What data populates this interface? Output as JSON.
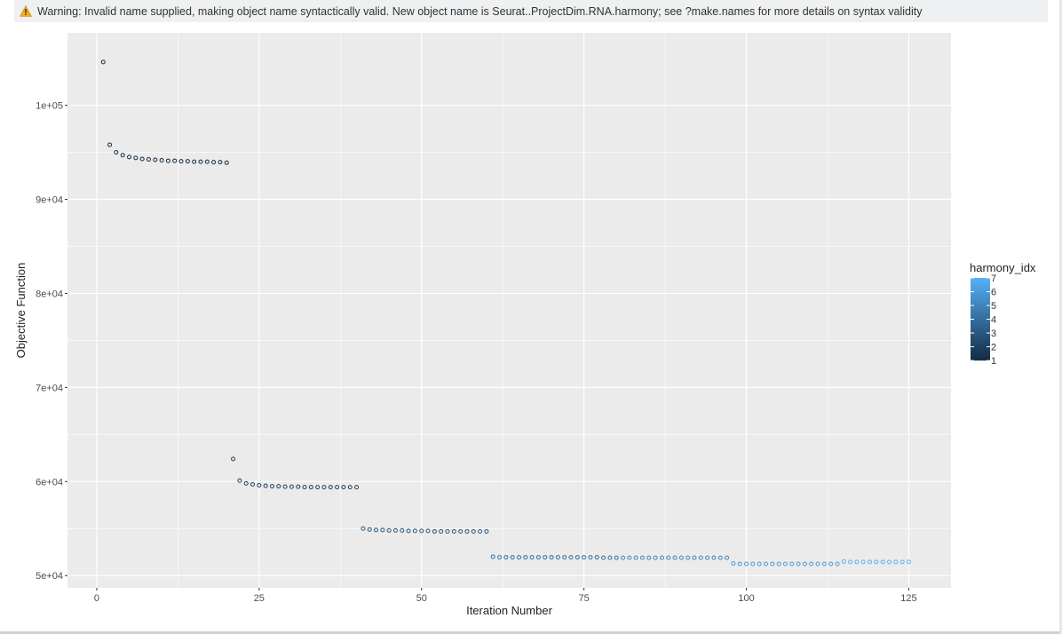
{
  "warning": {
    "icon": "warning-icon",
    "text": "Warning: Invalid name supplied, making object name syntactically valid. New object name is Seurat..ProjectDim.RNA.harmony; see ?make.names for more details on syntax validity",
    "icon_color": "#f0ad1e"
  },
  "chart_data": {
    "type": "scatter",
    "xlabel": "Iteration Number",
    "ylabel": "Objective Function",
    "xlim": [
      -4.5,
      131.5
    ],
    "ylim": [
      48700,
      107700
    ],
    "x_ticks": [
      {
        "value": 0,
        "label": "0"
      },
      {
        "value": 25,
        "label": "25"
      },
      {
        "value": 50,
        "label": "50"
      },
      {
        "value": 75,
        "label": "75"
      },
      {
        "value": 100,
        "label": "100"
      },
      {
        "value": 125,
        "label": "125"
      }
    ],
    "y_ticks": [
      {
        "value": 50000,
        "label": "5e+04"
      },
      {
        "value": 60000,
        "label": "6e+04"
      },
      {
        "value": 70000,
        "label": "7e+04"
      },
      {
        "value": 80000,
        "label": "8e+04"
      },
      {
        "value": 90000,
        "label": "9e+04"
      },
      {
        "value": 100000,
        "label": "1e+05"
      }
    ],
    "grid": true,
    "panel_background": "#ebebeb",
    "grid_color": "#ffffff",
    "legend": {
      "title": "harmony_idx",
      "position": "right",
      "type": "colorbar",
      "low_color": "#132b43",
      "high_color": "#56b1f7",
      "range": [
        1,
        7
      ],
      "ticks": [
        "1",
        "2",
        "3",
        "4",
        "5",
        "6",
        "7"
      ]
    },
    "color_by": "harmony_idx",
    "series": [
      {
        "harmony_idx": 1,
        "x": [
          1,
          2,
          3,
          4,
          5,
          6,
          7,
          8,
          9,
          10,
          11,
          12,
          13,
          14,
          15,
          16,
          17,
          18,
          19,
          20
        ],
        "y": [
          104600,
          95800,
          95000,
          94700,
          94500,
          94400,
          94300,
          94250,
          94200,
          94150,
          94100,
          94100,
          94050,
          94050,
          94000,
          94000,
          94000,
          93950,
          93950,
          93900
        ]
      },
      {
        "harmony_idx": 2,
        "x": [
          21,
          22,
          23,
          24,
          25,
          26,
          27,
          28,
          29,
          30,
          31,
          32,
          33,
          34,
          35,
          36,
          37,
          38,
          39,
          40
        ],
        "y": [
          62400,
          60100,
          59800,
          59700,
          59600,
          59550,
          59500,
          59500,
          59450,
          59450,
          59450,
          59400,
          59400,
          59400,
          59400,
          59400,
          59400,
          59400,
          59400,
          59400
        ]
      },
      {
        "harmony_idx": 3,
        "x": [
          41,
          42,
          43,
          44,
          45,
          46,
          47,
          48,
          49,
          50,
          51,
          52,
          53,
          54,
          55,
          56,
          57,
          58,
          59,
          60
        ],
        "y": [
          55000,
          54900,
          54850,
          54850,
          54800,
          54800,
          54800,
          54750,
          54750,
          54750,
          54750,
          54700,
          54700,
          54700,
          54700,
          54700,
          54700,
          54700,
          54700,
          54700
        ]
      },
      {
        "harmony_idx": 4,
        "x": [
          61,
          62,
          63,
          64,
          65,
          66,
          67,
          68,
          69,
          70,
          71,
          72,
          73,
          74,
          75,
          76,
          77,
          78,
          79,
          80
        ],
        "y": [
          52000,
          51950,
          51950,
          51950,
          51950,
          51950,
          51950,
          51950,
          51950,
          51950,
          51950,
          51950,
          51950,
          51950,
          51950,
          51950,
          51950,
          51900,
          51900,
          51900
        ]
      },
      {
        "harmony_idx": 5,
        "x": [
          81,
          82,
          83,
          84,
          85,
          86,
          87,
          88,
          89,
          90,
          91,
          92,
          93,
          94,
          95,
          96,
          97
        ],
        "y": [
          51900,
          51900,
          51900,
          51900,
          51900,
          51900,
          51900,
          51900,
          51900,
          51900,
          51900,
          51900,
          51900,
          51900,
          51900,
          51900,
          51900
        ]
      },
      {
        "harmony_idx": 6,
        "x": [
          98,
          99,
          100,
          101,
          102,
          103,
          104,
          105,
          106,
          107,
          108,
          109,
          110,
          111,
          112,
          113,
          114
        ],
        "y": [
          51300,
          51250,
          51250,
          51250,
          51250,
          51250,
          51250,
          51250,
          51250,
          51250,
          51250,
          51250,
          51250,
          51250,
          51250,
          51250,
          51250
        ]
      },
      {
        "harmony_idx": 7,
        "x": [
          115,
          116,
          117,
          118,
          119,
          120,
          121,
          122,
          123,
          124,
          125
        ],
        "y": [
          51500,
          51450,
          51450,
          51450,
          51450,
          51450,
          51450,
          51450,
          51450,
          51450,
          51450
        ]
      }
    ]
  }
}
